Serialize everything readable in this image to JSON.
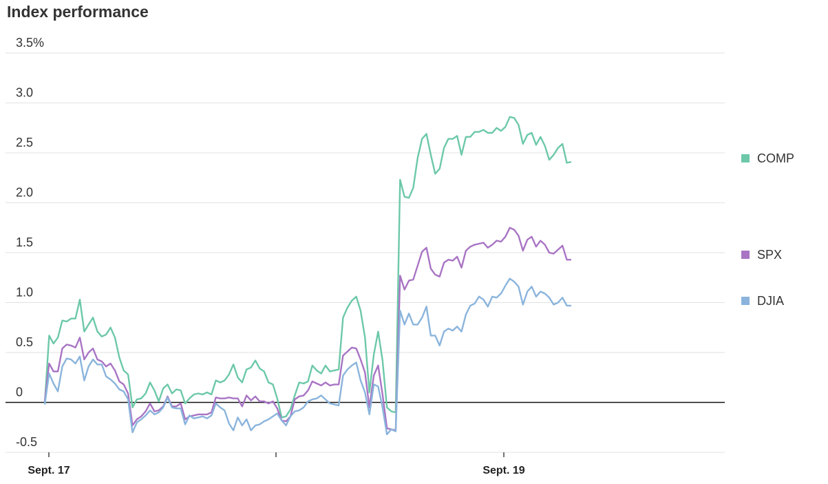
{
  "chart_data": {
    "type": "line",
    "title": "Index performance",
    "xlabel": "",
    "ylabel": "",
    "x_tick_labels": [
      {
        "index": 0,
        "label": "Sept. 17"
      },
      {
        "index": 52,
        "label": ""
      },
      {
        "index": 104,
        "label": "Sept. 19"
      }
    ],
    "x_max_index": 155,
    "ylim": [
      -0.5,
      3.5
    ],
    "y_ticks": [
      {
        "value": 3.5,
        "label": "3.5%"
      },
      {
        "value": 3.0,
        "label": "3.0"
      },
      {
        "value": 2.5,
        "label": "2.5"
      },
      {
        "value": 2.0,
        "label": "2.0"
      },
      {
        "value": 1.5,
        "label": "1.5"
      },
      {
        "value": 1.0,
        "label": "1.0"
      },
      {
        "value": 0.5,
        "label": "0.5"
      },
      {
        "value": 0,
        "label": "0"
      },
      {
        "value": -0.5,
        "label": "-0.5"
      }
    ],
    "grid": true,
    "legend_position": "right",
    "series": [
      {
        "name": "COMP",
        "color": "#6cc8a8",
        "values": [
          -0.01,
          0.67,
          0.59,
          0.65,
          0.82,
          0.81,
          0.84,
          0.84,
          1.03,
          0.71,
          0.78,
          0.85,
          0.71,
          0.66,
          0.68,
          0.75,
          0.65,
          0.45,
          0.32,
          0.28,
          -0.05,
          0.03,
          0.04,
          0.09,
          0.2,
          0.12,
          0.01,
          0.14,
          0.18,
          0.09,
          0.13,
          0.12,
          -0.01,
          0.04,
          0.08,
          0.09,
          0.08,
          0.1,
          0.08,
          0.22,
          0.2,
          0.22,
          0.28,
          0.38,
          0.25,
          0.2,
          0.33,
          0.35,
          0.42,
          0.34,
          0.31,
          0.2,
          0.18,
          0.04,
          -0.15,
          -0.14,
          -0.07,
          0.07,
          0.2,
          0.19,
          0.21,
          0.37,
          0.32,
          0.29,
          0.37,
          0.31,
          0.32,
          0.33,
          0.85,
          0.95,
          1.02,
          1.06,
          0.92,
          0.65,
          0.1,
          0.48,
          0.71,
          0.42,
          -0.05,
          -0.09,
          -0.1,
          2.23,
          2.06,
          2.05,
          2.15,
          2.45,
          2.64,
          2.69,
          2.48,
          2.29,
          2.34,
          2.55,
          2.64,
          2.64,
          2.67,
          2.48,
          2.66,
          2.66,
          2.71,
          2.71,
          2.73,
          2.7,
          2.7,
          2.75,
          2.72,
          2.76,
          2.86,
          2.85,
          2.78,
          2.59,
          2.68,
          2.7,
          2.58,
          2.66,
          2.57,
          2.43,
          2.48,
          2.55,
          2.59,
          2.4,
          2.41
        ],
        "end_label": "COMP"
      },
      {
        "name": "SPX",
        "color": "#a874c4",
        "values": [
          0.01,
          0.39,
          0.31,
          0.31,
          0.54,
          0.58,
          0.57,
          0.55,
          0.65,
          0.43,
          0.5,
          0.54,
          0.43,
          0.41,
          0.36,
          0.39,
          0.32,
          0.21,
          0.18,
          0.09,
          -0.23,
          -0.17,
          -0.14,
          -0.09,
          -0.01,
          -0.09,
          -0.08,
          -0.04,
          0.06,
          -0.04,
          -0.04,
          -0.01,
          -0.17,
          -0.14,
          -0.13,
          -0.12,
          -0.12,
          -0.12,
          -0.1,
          0.05,
          0.04,
          0.04,
          0.05,
          0.04,
          0.04,
          -0.04,
          0.07,
          0.02,
          0.06,
          0.01,
          0.01,
          -0.01,
          0.01,
          -0.06,
          -0.18,
          -0.19,
          -0.14,
          0.03,
          0.06,
          0.07,
          0.12,
          0.21,
          0.19,
          0.17,
          0.2,
          0.17,
          0.18,
          0.18,
          0.47,
          0.51,
          0.55,
          0.54,
          0.43,
          0.3,
          -0.05,
          0.27,
          0.37,
          0.08,
          -0.26,
          -0.27,
          -0.28,
          1.27,
          1.13,
          1.22,
          1.23,
          1.37,
          1.51,
          1.55,
          1.34,
          1.28,
          1.26,
          1.4,
          1.43,
          1.42,
          1.46,
          1.35,
          1.52,
          1.56,
          1.58,
          1.59,
          1.6,
          1.55,
          1.58,
          1.62,
          1.61,
          1.66,
          1.75,
          1.73,
          1.67,
          1.52,
          1.63,
          1.66,
          1.56,
          1.62,
          1.58,
          1.5,
          1.49,
          1.53,
          1.57,
          1.43,
          1.43
        ]
      },
      {
        "name": "DJIA",
        "color": "#8ab4dc",
        "values": [
          -0.02,
          0.29,
          0.19,
          0.11,
          0.36,
          0.44,
          0.43,
          0.39,
          0.46,
          0.22,
          0.36,
          0.43,
          0.38,
          0.38,
          0.26,
          0.23,
          0.19,
          0.13,
          0.11,
          0.03,
          -0.3,
          -0.2,
          -0.17,
          -0.13,
          -0.08,
          -0.12,
          -0.1,
          -0.05,
          0.05,
          -0.05,
          -0.06,
          -0.06,
          -0.22,
          -0.13,
          -0.16,
          -0.15,
          -0.14,
          -0.16,
          -0.13,
          -0.01,
          -0.05,
          -0.08,
          -0.21,
          -0.28,
          -0.15,
          -0.23,
          -0.17,
          -0.28,
          -0.23,
          -0.22,
          -0.19,
          -0.17,
          -0.14,
          -0.11,
          -0.18,
          -0.23,
          -0.14,
          -0.09,
          -0.08,
          -0.05,
          0.01,
          0.03,
          0.04,
          0.07,
          0.03,
          -0.01,
          -0.02,
          -0.03,
          0.27,
          0.33,
          0.37,
          0.4,
          0.22,
          0.1,
          -0.12,
          0.18,
          0.16,
          -0.05,
          -0.32,
          -0.27,
          -0.29,
          0.92,
          0.78,
          0.89,
          0.78,
          0.78,
          0.85,
          0.96,
          0.67,
          0.67,
          0.57,
          0.71,
          0.74,
          0.72,
          0.76,
          0.71,
          0.88,
          0.97,
          0.99,
          1.06,
          1.03,
          0.96,
          1.06,
          1.05,
          1.09,
          1.17,
          1.24,
          1.21,
          1.16,
          0.98,
          1.11,
          1.16,
          1.06,
          1.11,
          1.09,
          1.05,
          0.98,
          1.0,
          1.05,
          0.97,
          0.97
        ]
      }
    ],
    "legend": [
      {
        "name": "COMP",
        "label": "COMP",
        "color": "#6cc8a8",
        "value": 2.4
      },
      {
        "name": "SPX",
        "label": "SPX",
        "color": "#a874c4",
        "value": 1.43
      },
      {
        "name": "DJIA",
        "label": "DJIA",
        "color": "#8ab4dc",
        "value": 0.97
      }
    ]
  }
}
